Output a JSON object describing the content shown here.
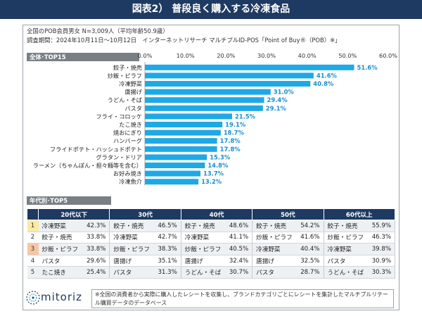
{
  "title": "図表2） 普段良く購入する冷凍食品",
  "notes": {
    "line1": "全国のPOB会員男女 N=3,009人（平均年齢50.9歳）",
    "line2": "調査期間：2024年10月11日～10月12日　インターネットリサーチ マルチプルID-POS「Point of Buy®（POB）※」"
  },
  "section_overall": "全体･TOP15",
  "section_age": "年代別･TOP5",
  "chart_data": {
    "type": "bar",
    "orientation": "horizontal",
    "title": "全体･TOP15",
    "categories": [
      "餃子・焼売",
      "炒飯・ピラフ",
      "冷凍野菜",
      "唐揚げ",
      "うどん・そば",
      "パスタ",
      "フライ・コロッケ",
      "たこ焼き",
      "焼おにぎり",
      "ハンバーグ",
      "フライドポテト・ハッシュドポテト",
      "グラタン・ドリア",
      "ラーメン（ちゃんぽん・担々麺等を含む）",
      "お好み焼き",
      "冷凍魚介"
    ],
    "values": [
      51.6,
      41.6,
      40.8,
      31.0,
      29.4,
      29.1,
      21.5,
      19.1,
      18.7,
      17.8,
      17.8,
      15.3,
      14.8,
      13.7,
      13.2
    ],
    "value_labels": [
      "51.6%",
      "41.6%",
      "40.8%",
      "31.0%",
      "29.4%",
      "29.1%",
      "21.5%",
      "19.1%",
      "18.7%",
      "17.8%",
      "17.8%",
      "15.3%",
      "14.8%",
      "13.7%",
      "13.2%"
    ],
    "xlim": [
      0,
      60
    ],
    "xticks": [
      "0.0%",
      "10.0%",
      "20.0%",
      "30.0%",
      "40.0%",
      "50.0%",
      "60.0%"
    ],
    "tick_values": [
      0,
      10,
      20,
      30,
      40,
      50,
      60
    ],
    "grid": false,
    "bar_color": "#1fa8e6",
    "label_color": "#1a8fd0"
  },
  "table": {
    "headers": [
      "20代以下",
      "30代",
      "40代",
      "50代",
      "60代以上"
    ],
    "ranks": [
      "1",
      "2",
      "3",
      "4",
      "5"
    ],
    "rows": [
      [
        [
          "冷凍野菜",
          "42.3%"
        ],
        [
          "餃子・焼売",
          "46.5%"
        ],
        [
          "餃子・焼売",
          "48.6%"
        ],
        [
          "餃子・焼売",
          "54.2%"
        ],
        [
          "餃子・焼売",
          "55.9%"
        ]
      ],
      [
        [
          "餃子・焼売",
          "33.8%"
        ],
        [
          "冷凍野菜",
          "42.7%"
        ],
        [
          "冷凍野菜",
          "41.1%"
        ],
        [
          "炒飯・ピラフ",
          "41.6%"
        ],
        [
          "炒飯・ピラフ",
          "46.3%"
        ]
      ],
      [
        [
          "炒飯・ピラフ",
          "33.8%"
        ],
        [
          "炒飯・ピラフ",
          "38.3%"
        ],
        [
          "炒飯・ピラフ",
          "40.5%"
        ],
        [
          "冷凍野菜",
          "40.4%"
        ],
        [
          "冷凍野菜",
          "39.8%"
        ]
      ],
      [
        [
          "パスタ",
          "29.6%"
        ],
        [
          "唐揚げ",
          "35.1%"
        ],
        [
          "唐揚げ",
          "32.4%"
        ],
        [
          "唐揚げ",
          "32.5%"
        ],
        [
          "パスタ",
          "30.9%"
        ]
      ],
      [
        [
          "たこ焼き",
          "25.4%"
        ],
        [
          "パスタ",
          "31.3%"
        ],
        [
          "うどん・そば",
          "30.7%"
        ],
        [
          "パスタ",
          "28.7%"
        ],
        [
          "うどん・そば",
          "30.3%"
        ]
      ]
    ]
  },
  "logo": "mitoriz",
  "footnote": "※全国の消費者から実際に購入したレシートを収集し、ブランドカテゴリごとにレシートを集計したマルチプルリテール購買データのデータベース",
  "colors": {
    "header_navy": "#1e3a62",
    "bar": "#1fa8e6",
    "rank1": "#fbe9a6",
    "rank3": "#f7c7a3"
  }
}
